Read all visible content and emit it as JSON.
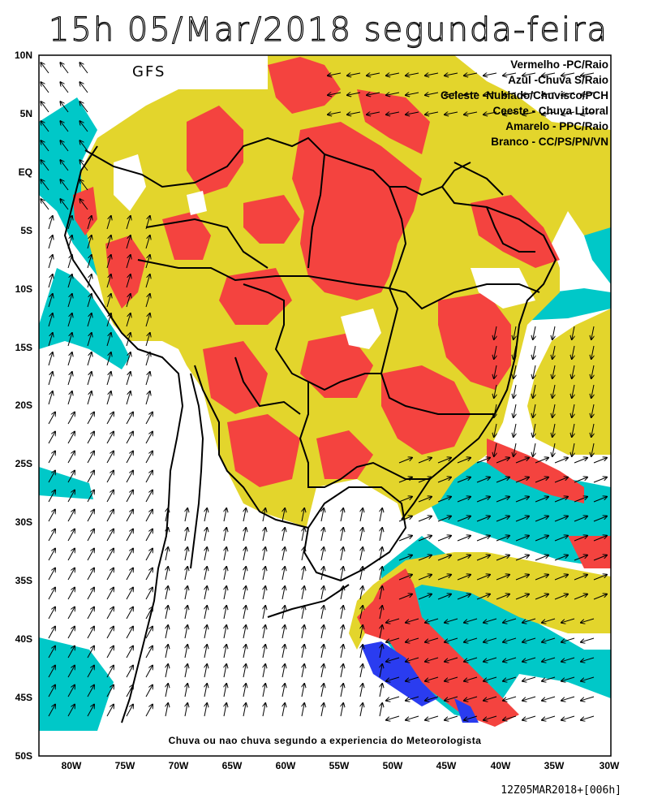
{
  "title": "15h 05/Mar/2018 segunda-feira",
  "model_label": "GFS",
  "legend": [
    "Vermelho -PC/Raio",
    "Azul -Chuva S/Raio",
    "Celeste -Nublado/Chuvisco/PCH",
    "Ceeste - Chuva Litoral",
    "Amarelo - PPC/Raio",
    "Branco - CC/PS/PN/VN"
  ],
  "colors": {
    "red": "#f4433f",
    "blue": "#2a3cf0",
    "cyan": "#00c8c8",
    "yellow": "#e3d52c",
    "white": "#ffffff"
  },
  "footer_note": "Chuva ou nao chuva segundo a experiencia do Meteorologista",
  "timestamp": "12Z05MAR2018+[006h]",
  "lat_labels": [
    "10N",
    "5N",
    "EQ",
    "5S",
    "10S",
    "15S",
    "20S",
    "25S",
    "30S",
    "35S",
    "40S",
    "45S",
    "50S"
  ],
  "lon_labels": [
    "80W",
    "75W",
    "70W",
    "65W",
    "60W",
    "55W",
    "50W",
    "45W",
    "40W",
    "35W",
    "30W"
  ]
}
